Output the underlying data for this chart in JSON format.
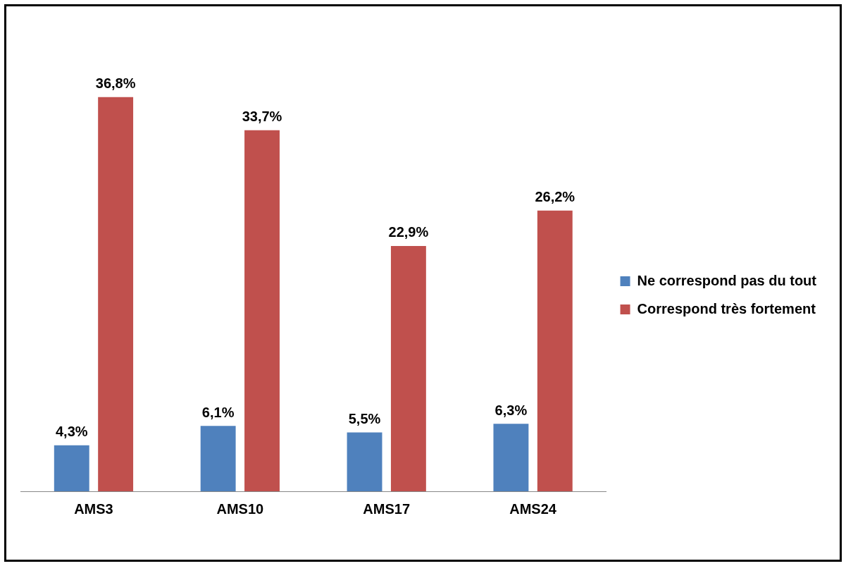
{
  "chart_data": {
    "type": "bar",
    "categories": [
      "AMS3",
      "AMS10",
      "AMS17",
      "AMS24"
    ],
    "series": [
      {
        "name": "Ne correspond pas du tout",
        "color": "#4f81bd",
        "values": [
          4.3,
          6.1,
          5.5,
          6.3
        ],
        "value_labels": [
          "4,3%",
          "6,1%",
          "5,5%",
          "6,3%"
        ]
      },
      {
        "name": "Correspond très fortement",
        "color": "#c0504d",
        "values": [
          36.8,
          33.7,
          22.9,
          26.2
        ],
        "value_labels": [
          "36,8%",
          "33,7%",
          "22,9%",
          "26,2%"
        ]
      }
    ],
    "legend": "right",
    "grid": false
  }
}
